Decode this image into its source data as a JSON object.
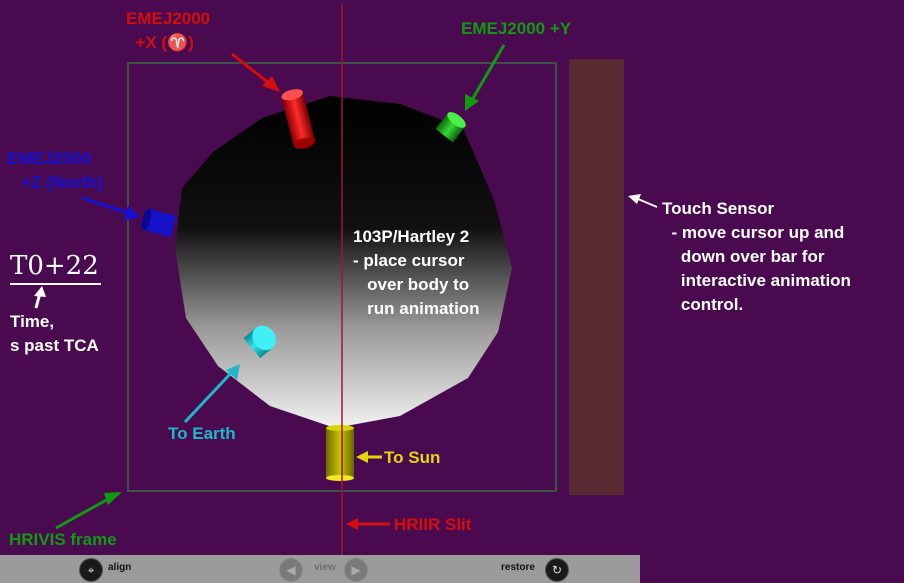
{
  "labels": {
    "x_axis": "EMEJ2000\n  +X (♈)",
    "y_axis": "EMEJ2000 +Y",
    "z_axis": "EMEJ2000\n   +Z (North)",
    "comet": "103P/Hartley 2\n- place cursor\n   over body to\n   run animation",
    "touch_sensor": "Touch Sensor\n  - move cursor up and\n    down over bar for\n    interactive animation\n    control.",
    "time_value": "T0+22",
    "time_caption": "Time,\ns past TCA",
    "to_earth": "To Earth",
    "to_sun": "To Sun",
    "hrivis": "HRIVIS frame",
    "hriir": "HRIIR Slit"
  },
  "toolbar": {
    "align": "align",
    "view": "view",
    "restore": "restore"
  },
  "colors": {
    "background": "#4a0a4f",
    "x_axis": "#d40d0d",
    "y_axis": "#109a10",
    "z_axis": "#1411d6",
    "earth": "#1fb8c8",
    "sun": "#e0d80a",
    "touch_bar": "#5a2b33"
  },
  "icons": {
    "align": "align-icon",
    "view_prev": "arrow-left-icon",
    "view_next": "arrow-right-icon",
    "restore": "restore-icon"
  }
}
